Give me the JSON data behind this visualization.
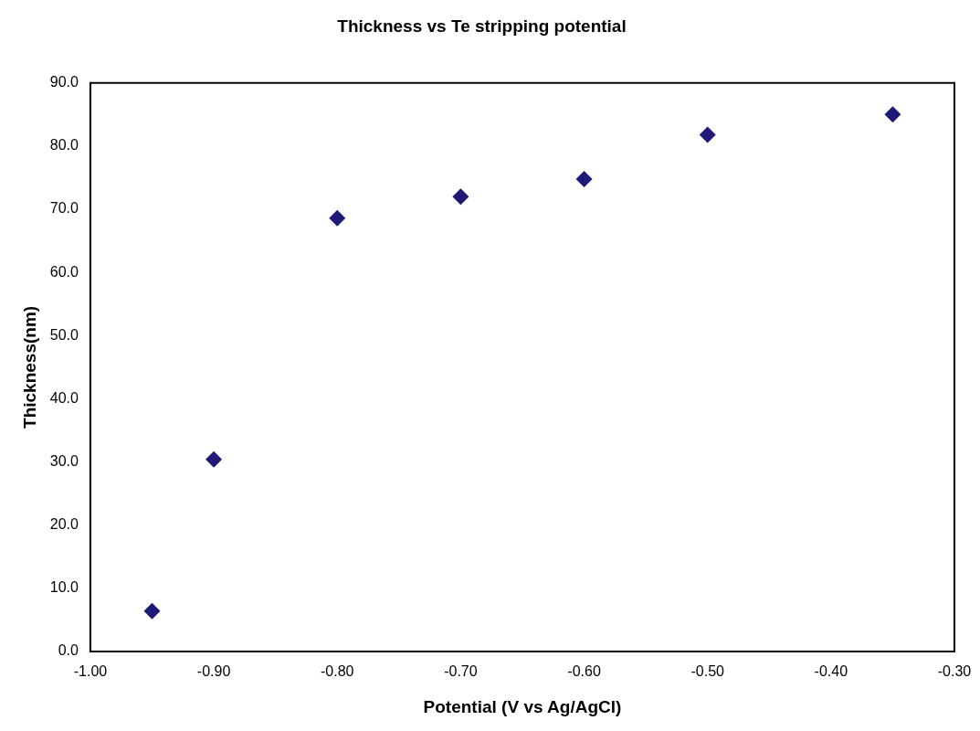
{
  "chart_data": {
    "type": "scatter",
    "title": "Thickness vs Te stripping potential",
    "xlabel": "Potential (V vs Ag/AgCl)",
    "ylabel": "Thickness(nm)",
    "x": [
      -0.95,
      -0.9,
      -0.8,
      -0.7,
      -0.6,
      -0.5,
      -0.35
    ],
    "values": [
      6.4,
      30.4,
      68.6,
      72.0,
      74.8,
      81.8,
      85.0
    ],
    "color": "#1f1a78",
    "marker": "diamond",
    "grid": false,
    "legend": false,
    "xlim": [
      -1.0,
      -0.3
    ],
    "xticks": [
      {
        "value": -1.0,
        "label": "-1.00"
      },
      {
        "value": -0.9,
        "label": "-0.90"
      },
      {
        "value": -0.8,
        "label": "-0.80"
      },
      {
        "value": -0.7,
        "label": "-0.70"
      },
      {
        "value": -0.6,
        "label": "-0.60"
      },
      {
        "value": -0.5,
        "label": "-0.50"
      },
      {
        "value": -0.4,
        "label": "-0.40"
      },
      {
        "value": -0.3,
        "label": "-0.30"
      }
    ],
    "ylim": [
      0,
      90
    ],
    "yticks": [
      {
        "value": 0,
        "label": "0.0"
      },
      {
        "value": 10,
        "label": "10.0"
      },
      {
        "value": 20,
        "label": "20.0"
      },
      {
        "value": 30,
        "label": "30.0"
      },
      {
        "value": 40,
        "label": "40.0"
      },
      {
        "value": 50,
        "label": "50.0"
      },
      {
        "value": 60,
        "label": "60.0"
      },
      {
        "value": 70,
        "label": "70.0"
      },
      {
        "value": 80,
        "label": "80.0"
      },
      {
        "value": 90,
        "label": "90.0"
      }
    ]
  }
}
